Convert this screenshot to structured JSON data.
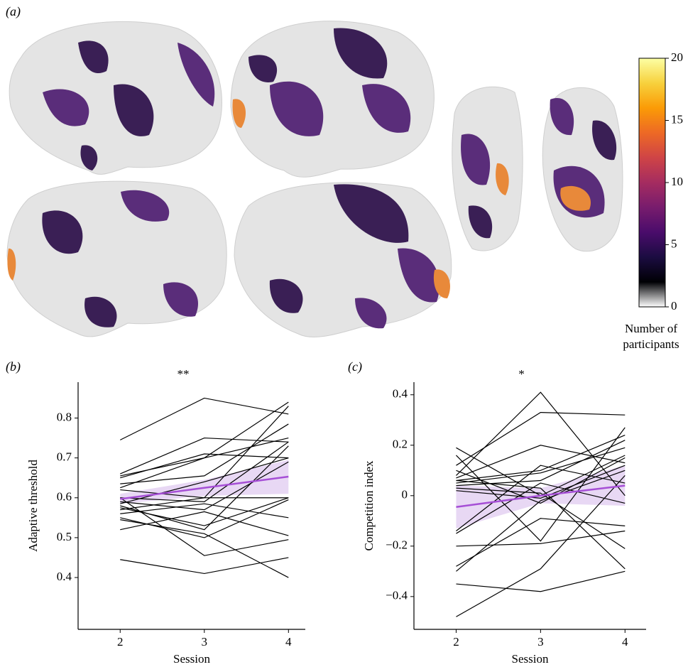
{
  "chart_data": [
    {
      "type": "colorbar",
      "panel": "(a)",
      "label": "Number of participants",
      "ylim": [
        0,
        20
      ],
      "yticks": [
        0,
        5,
        10,
        15,
        20
      ],
      "colors": [
        "#ffffff",
        "#000004",
        "#1b0c41",
        "#4a0c6b",
        "#781c6d",
        "#a52c60",
        "#cf4446",
        "#ed6925",
        "#fb9b06",
        "#f7d13d",
        "#fcffa4"
      ]
    },
    {
      "type": "line",
      "panel": "(b)",
      "annotation": "**",
      "xlabel": "Session",
      "ylabel": "Adaptive threshold",
      "x": [
        2,
        3,
        4
      ],
      "xlim": [
        1.5,
        4.2
      ],
      "xticks": [
        2,
        3,
        4
      ],
      "ylim": [
        0.27,
        0.89
      ],
      "yticks": [
        0.4,
        0.5,
        0.6,
        0.7,
        0.8
      ],
      "line_color": "#000000",
      "lines": [
        [
          0.745,
          0.85,
          0.81
        ],
        [
          0.66,
          0.75,
          0.74
        ],
        [
          0.655,
          0.7,
          0.84
        ],
        [
          0.65,
          0.71,
          0.7
        ],
        [
          0.635,
          0.655,
          0.785
        ],
        [
          0.625,
          0.7,
          0.75
        ],
        [
          0.62,
          0.6,
          0.83
        ],
        [
          0.6,
          0.59,
          0.74
        ],
        [
          0.59,
          0.57,
          0.69
        ],
        [
          0.585,
          0.64,
          0.7
        ],
        [
          0.58,
          0.52,
          0.73
        ],
        [
          0.575,
          0.53,
          0.6
        ],
        [
          0.57,
          0.6,
          0.6
        ],
        [
          0.56,
          0.585,
          0.55
        ],
        [
          0.545,
          0.51,
          0.4
        ],
        [
          0.52,
          0.565,
          0.505
        ],
        [
          0.6,
          0.455,
          0.495
        ],
        [
          0.445,
          0.41,
          0.45
        ],
        [
          0.55,
          0.5,
          0.595
        ]
      ],
      "fit": {
        "color": "#a64fd6",
        "band_color": "#e8d8f4",
        "values": [
          0.597,
          0.625,
          0.653
        ],
        "lower": [
          0.585,
          0.605,
          0.61
        ],
        "upper": [
          0.61,
          0.645,
          0.695
        ]
      }
    },
    {
      "type": "line",
      "panel": "(c)",
      "annotation": "*",
      "xlabel": "Session",
      "ylabel": "Competition index",
      "x": [
        2,
        3,
        4
      ],
      "xlim": [
        1.5,
        4.25
      ],
      "xticks": [
        2,
        3,
        4
      ],
      "ylim": [
        -0.53,
        0.45
      ],
      "yticks": [
        {
          "value": -0.4,
          "label": "−0.4"
        },
        {
          "value": -0.2,
          "label": "−0.2"
        },
        0,
        0.2,
        0.4
      ],
      "line_color": "#000000",
      "lines": [
        [
          0.19,
          0.0,
          0.16
        ],
        [
          0.16,
          -0.18,
          0.27
        ],
        [
          0.12,
          0.33,
          0.32
        ],
        [
          0.08,
          0.41,
          0.0
        ],
        [
          0.07,
          0.2,
          0.13
        ],
        [
          0.06,
          0.1,
          0.24
        ],
        [
          0.05,
          0.09,
          0.19
        ],
        [
          0.04,
          0.06,
          0.22
        ],
        [
          0.03,
          0.01,
          -0.21
        ],
        [
          0.02,
          -0.01,
          0.12
        ],
        [
          -0.14,
          0.12,
          0.05
        ],
        [
          -0.15,
          0.05,
          -0.03
        ],
        [
          -0.2,
          -0.19,
          -0.14
        ],
        [
          -0.28,
          -0.09,
          -0.12
        ],
        [
          -0.3,
          -0.02,
          0.1
        ],
        [
          -0.35,
          -0.38,
          -0.3
        ],
        [
          -0.48,
          -0.29,
          0.08
        ],
        [
          0.06,
          0.03,
          -0.29
        ],
        [
          0.1,
          -0.03,
          0.15
        ]
      ],
      "fit": {
        "color": "#a64fd6",
        "band_color": "#e8d8f4",
        "values": [
          -0.045,
          0.0,
          0.04
        ],
        "lower": [
          -0.13,
          -0.03,
          -0.04
        ],
        "upper": [
          0.04,
          0.03,
          0.12
        ]
      }
    }
  ]
}
